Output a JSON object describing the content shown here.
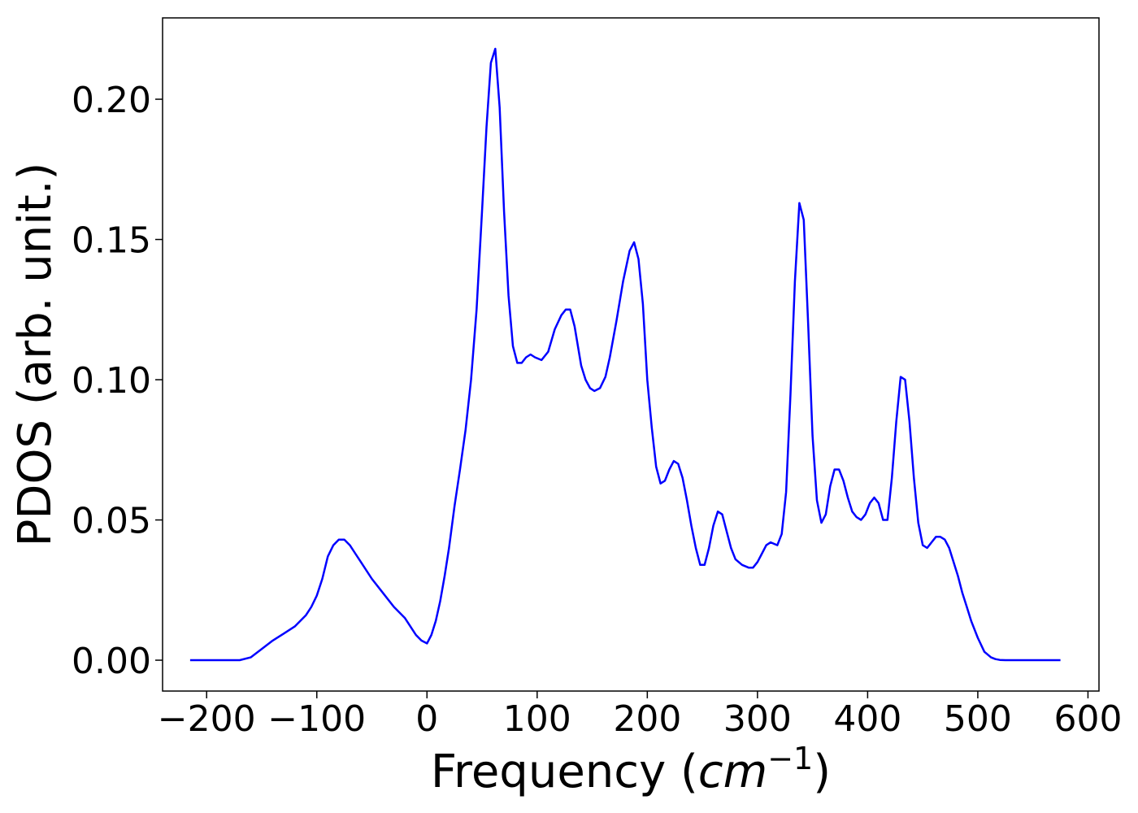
{
  "chart_data": {
    "type": "line",
    "xlabel": "Frequency",
    "xlabel_unit_base": "cm",
    "xlabel_unit_exp": "−1",
    "ylabel": "PDOS (arb. unit.)",
    "xlim": [
      -240,
      610
    ],
    "ylim": [
      -0.011,
      0.229
    ],
    "grid": false,
    "x_ticks": [
      -200,
      -100,
      0,
      100,
      200,
      300,
      400,
      500,
      600
    ],
    "x_tick_labels": [
      "−200",
      "−100",
      "0",
      "100",
      "200",
      "300",
      "400",
      "500",
      "600"
    ],
    "y_ticks": [
      0.0,
      0.05,
      0.1,
      0.15,
      0.2
    ],
    "y_tick_labels": [
      "0.00",
      "0.05",
      "0.10",
      "0.15",
      "0.20"
    ],
    "series": [
      {
        "color": "#0000ff",
        "x": [
          -215,
          -170,
          -160,
          -150,
          -140,
          -130,
          -120,
          -110,
          -105,
          -100,
          -95,
          -90,
          -85,
          -80,
          -75,
          -70,
          -65,
          -60,
          -50,
          -40,
          -30,
          -20,
          -15,
          -10,
          -5,
          0,
          4,
          8,
          12,
          16,
          20,
          25,
          30,
          35,
          40,
          45,
          50,
          54,
          58,
          62,
          66,
          70,
          74,
          78,
          82,
          86,
          90,
          94,
          98,
          104,
          110,
          116,
          122,
          126,
          130,
          134,
          140,
          144,
          148,
          152,
          157,
          162,
          166,
          172,
          178,
          184,
          188,
          192,
          196,
          200,
          204,
          208,
          212,
          216,
          220,
          224,
          228,
          232,
          236,
          240,
          244,
          248,
          252,
          256,
          260,
          264,
          268,
          272,
          276,
          280,
          286,
          292,
          296,
          300,
          304,
          308,
          312,
          318,
          322,
          326,
          330,
          334,
          338,
          342,
          346,
          350,
          354,
          358,
          362,
          366,
          370,
          374,
          378,
          382,
          386,
          390,
          394,
          398,
          402,
          406,
          410,
          414,
          418,
          422,
          426,
          430,
          434,
          438,
          442,
          446,
          450,
          454,
          458,
          462,
          466,
          470,
          474,
          478,
          482,
          486,
          490,
          494,
          500,
          506,
          512,
          516,
          520,
          525,
          530,
          575
        ],
        "y": [
          0.0,
          0.0,
          0.001,
          0.004,
          0.007,
          0.0095,
          0.012,
          0.016,
          0.019,
          0.023,
          0.029,
          0.037,
          0.041,
          0.043,
          0.043,
          0.041,
          0.038,
          0.035,
          0.029,
          0.024,
          0.019,
          0.015,
          0.012,
          0.009,
          0.007,
          0.006,
          0.009,
          0.014,
          0.021,
          0.03,
          0.04,
          0.055,
          0.068,
          0.082,
          0.1,
          0.125,
          0.16,
          0.19,
          0.213,
          0.218,
          0.197,
          0.16,
          0.13,
          0.112,
          0.106,
          0.106,
          0.108,
          0.109,
          0.108,
          0.107,
          0.11,
          0.118,
          0.123,
          0.125,
          0.125,
          0.119,
          0.105,
          0.1,
          0.097,
          0.096,
          0.097,
          0.101,
          0.108,
          0.121,
          0.135,
          0.146,
          0.149,
          0.143,
          0.127,
          0.1,
          0.083,
          0.069,
          0.063,
          0.064,
          0.068,
          0.071,
          0.07,
          0.065,
          0.057,
          0.048,
          0.04,
          0.034,
          0.034,
          0.04,
          0.048,
          0.053,
          0.052,
          0.046,
          0.04,
          0.036,
          0.034,
          0.033,
          0.033,
          0.035,
          0.038,
          0.041,
          0.042,
          0.041,
          0.045,
          0.06,
          0.095,
          0.135,
          0.163,
          0.157,
          0.12,
          0.08,
          0.057,
          0.049,
          0.052,
          0.062,
          0.068,
          0.068,
          0.064,
          0.058,
          0.053,
          0.051,
          0.05,
          0.052,
          0.056,
          0.058,
          0.056,
          0.05,
          0.05,
          0.065,
          0.085,
          0.101,
          0.1,
          0.085,
          0.065,
          0.049,
          0.041,
          0.04,
          0.042,
          0.044,
          0.044,
          0.043,
          0.04,
          0.035,
          0.03,
          0.024,
          0.019,
          0.014,
          0.008,
          0.003,
          0.001,
          0.0004,
          0.0001,
          0.0,
          0.0,
          0.0
        ]
      }
    ]
  }
}
